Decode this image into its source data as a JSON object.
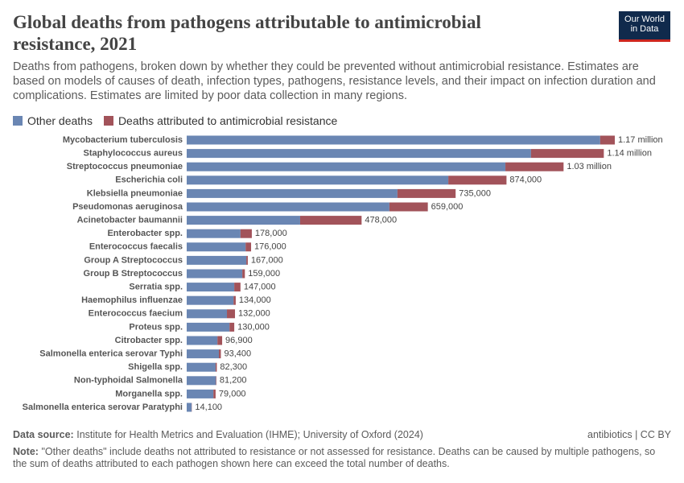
{
  "chart_data": {
    "type": "bar",
    "orientation": "horizontal",
    "stacked": true,
    "title": "Global deaths from pathogens attributable to antimicrobial resistance, 2021",
    "subtitle": "Deaths from pathogens, broken down by whether they could be prevented without antimicrobial resistance. Estimates are based on models of causes of death, infection types, pathogens, resistance levels, and their impact on infection duration and complications. Estimates are limited by poor data collection in many regions.",
    "categories": [
      "Mycobacterium tuberculosis",
      "Staphylococcus aureus",
      "Streptococcus pneumoniae",
      "Escherichia coli",
      "Klebsiella pneumoniae",
      "Pseudomonas aeruginosa",
      "Acinetobacter baumannii",
      "Enterobacter spp.",
      "Enterococcus faecalis",
      "Group A Streptococcus",
      "Group B Streptococcus",
      "Serratia spp.",
      "Haemophilus influenzae",
      "Enterococcus faecium",
      "Proteus spp.",
      "Citrobacter spp.",
      "Salmonella enterica serovar Typhi",
      "Shigella spp.",
      "Non-typhoidal Salmonella",
      "Morganella spp.",
      "Salmonella enterica serovar Paratyphi"
    ],
    "series": [
      {
        "name": "Other deaths",
        "color": "#6a86b3",
        "values": [
          1130000,
          941000,
          871000,
          715000,
          576000,
          554000,
          310000,
          147000,
          161000,
          163000,
          152000,
          130000,
          128000,
          110000,
          117000,
          84000,
          88000,
          79000,
          80000,
          73000,
          13500
        ]
      },
      {
        "name": "Deaths attributed to antimicrobial resistance",
        "color": "#a2535a",
        "values": [
          40000,
          199000,
          159000,
          159000,
          159000,
          105000,
          168000,
          31000,
          15000,
          4000,
          7000,
          17000,
          6000,
          22000,
          13000,
          12900,
          5400,
          3300,
          1200,
          6000,
          600
        ]
      }
    ],
    "totals": [
      1170000,
      1140000,
      1030000,
      874000,
      735000,
      659000,
      478000,
      178000,
      176000,
      167000,
      159000,
      147000,
      134000,
      132000,
      130000,
      96900,
      93400,
      82300,
      81200,
      79000,
      14100
    ],
    "total_labels": [
      "1.17 million",
      "1.14 million",
      "1.03 million",
      "874,000",
      "735,000",
      "659,000",
      "478,000",
      "178,000",
      "176,000",
      "167,000",
      "159,000",
      "147,000",
      "134,000",
      "132,000",
      "130,000",
      "96,900",
      "93,400",
      "82,300",
      "81,200",
      "79,000",
      "14,100"
    ],
    "logo_lines": [
      "Our World",
      "in Data"
    ],
    "source_label": "Data source:",
    "source": "Institute for Health Metrics and Evaluation (IHME); University of Oxford (2024)",
    "license": "antibiotics | CC BY",
    "note_label": "Note:",
    "note": "\"Other deaths\" include deaths not attributed to resistance or not assessed for resistance. Deaths can be caused by multiple pathogens, so the sum of deaths attributed to each pathogen shown here can exceed the total number of deaths."
  }
}
